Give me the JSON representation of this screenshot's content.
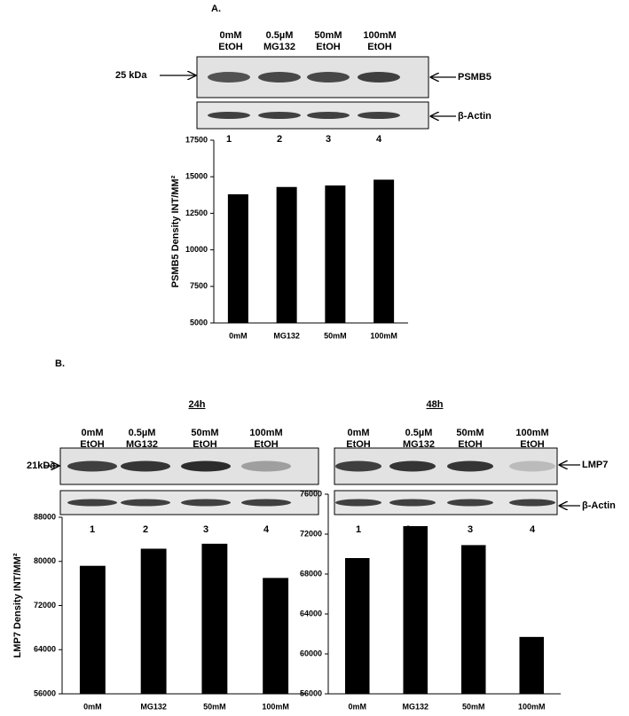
{
  "panel_a": {
    "label": "A.",
    "lanes": [
      [
        "0mM",
        "EtOH"
      ],
      [
        "0.5µM",
        "MG132"
      ],
      [
        "50mM",
        "EtOH"
      ],
      [
        "100mM",
        "EtOH"
      ]
    ],
    "marker": "25 kDa",
    "bands": [
      "PSMB5",
      "β-Actin"
    ],
    "lane_numbers": [
      "1",
      "2",
      "3",
      "4"
    ]
  },
  "panel_b": {
    "label": "B.",
    "blots": [
      {
        "title": "24h",
        "lanes": [
          [
            "0mM",
            "EtOH"
          ],
          [
            "0.5µM",
            "MG132"
          ],
          [
            "50mM",
            "EtOH"
          ],
          [
            "100mM",
            "EtOH"
          ]
        ],
        "marker": "21kDa",
        "lane_numbers": [
          "1",
          "2",
          "3",
          "4"
        ]
      },
      {
        "title": "48h",
        "lanes": [
          [
            "0mM",
            "EtOH"
          ],
          [
            "0.5µM",
            "MG132"
          ],
          [
            "50mM",
            "EtOH"
          ],
          [
            "100mM",
            "EtOH"
          ]
        ],
        "bands": [
          "LMP7",
          "β-Actin"
        ],
        "lane_numbers": [
          "1",
          "2",
          "3",
          "4"
        ]
      }
    ]
  },
  "chart_data": [
    {
      "type": "bar",
      "y_label": "PSMB5 Density INT/MM²",
      "categories": [
        "0mM",
        "MG132",
        "50mM",
        "100mM"
      ],
      "values": [
        13800,
        14300,
        14400,
        14800
      ],
      "color": "#000000",
      "ylim": [
        5000,
        17500
      ],
      "yticks": [
        5000,
        7500,
        10000,
        12500,
        15000,
        17500
      ]
    },
    {
      "type": "bar",
      "y_label": "LMP7 Density INT/MM²",
      "categories": [
        "0mM",
        "MG132",
        "50mM",
        "100mM"
      ],
      "values": [
        79200,
        82300,
        83200,
        77000
      ],
      "color": "#000000",
      "ylim": [
        56000,
        88000
      ],
      "yticks": [
        56000,
        64000,
        72000,
        80000,
        88000
      ]
    },
    {
      "type": "bar",
      "categories": [
        "0mM",
        "MG132",
        "50mM",
        "100mM"
      ],
      "values": [
        69600,
        72800,
        70900,
        61700
      ],
      "color": "#000000",
      "ylim": [
        56000,
        76000
      ],
      "yticks": [
        56000,
        60000,
        64000,
        68000,
        72000,
        76000
      ]
    }
  ]
}
